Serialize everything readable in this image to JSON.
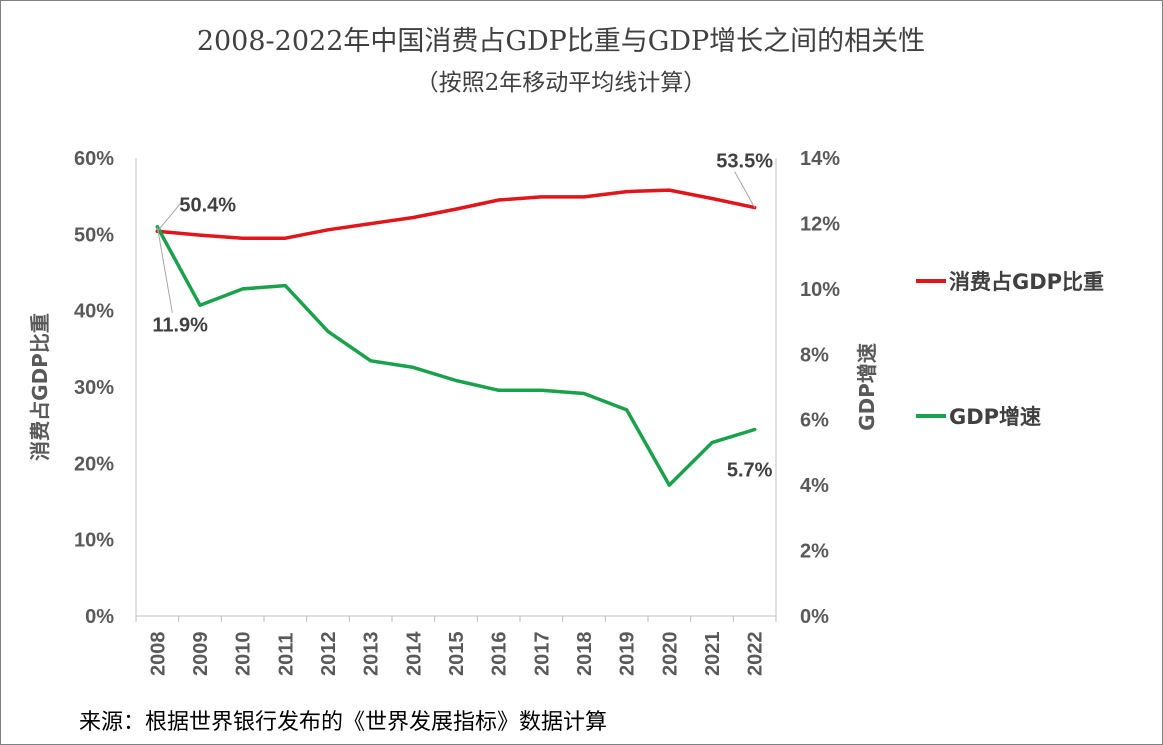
{
  "chart_data": {
    "type": "line",
    "title": "2008-2022年中国消费占GDP比重与GDP增长之间的相关性",
    "subtitle": "（按照2年移动平均线计算）",
    "categories": [
      "2008",
      "2009",
      "2010",
      "2011",
      "2012",
      "2013",
      "2014",
      "2015",
      "2016",
      "2017",
      "2018",
      "2019",
      "2020",
      "2021",
      "2022"
    ],
    "series": [
      {
        "name": "消费占GDP比重",
        "axis": "left",
        "color": "#e0161b",
        "values": [
          50.4,
          49.9,
          49.5,
          49.5,
          50.6,
          51.4,
          52.2,
          53.3,
          54.5,
          54.9,
          54.9,
          55.6,
          55.8,
          54.7,
          53.5
        ]
      },
      {
        "name": "GDP增速",
        "axis": "right",
        "color": "#1aa14c",
        "values": [
          11.9,
          9.5,
          10.0,
          10.1,
          8.7,
          7.8,
          7.6,
          7.2,
          6.9,
          6.9,
          6.8,
          6.3,
          4.0,
          5.3,
          5.7
        ]
      }
    ],
    "y_left": {
      "label": "消费占GDP比重",
      "range": [
        0,
        60
      ],
      "ticks": [
        0,
        10,
        20,
        30,
        40,
        50,
        60
      ],
      "tick_labels": [
        "0%",
        "10%",
        "20%",
        "30%",
        "40%",
        "50%",
        "60%"
      ]
    },
    "y_right": {
      "label": "GDP增速",
      "range": [
        0,
        14
      ],
      "ticks": [
        0,
        2,
        4,
        6,
        8,
        10,
        12,
        14
      ],
      "tick_labels": [
        "0%",
        "2%",
        "4%",
        "6%",
        "8%",
        "10%",
        "12%",
        "14%"
      ]
    },
    "annotations": [
      {
        "series": 0,
        "index": 0,
        "text": "50.4%"
      },
      {
        "series": 1,
        "index": 0,
        "text": "11.9%"
      },
      {
        "series": 0,
        "index": 14,
        "text": "53.5%"
      },
      {
        "series": 1,
        "index": 14,
        "text": "5.7%"
      }
    ],
    "legend_position": "right",
    "grid": false
  },
  "source": "来源：根据世界银行发布的《世界发展指标》数据计算"
}
